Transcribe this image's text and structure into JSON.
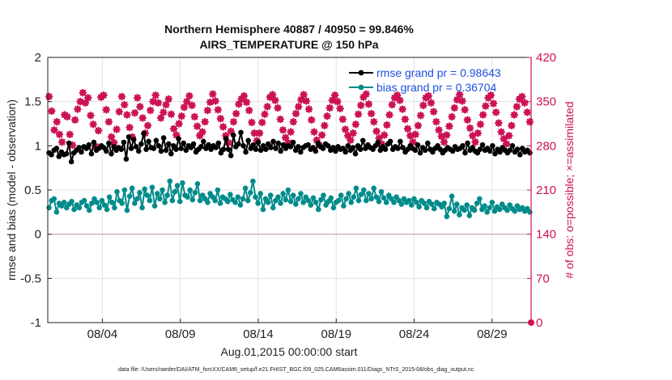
{
  "chart_data": {
    "type": "line",
    "title": "Northern Hemisphere 40887 / 40950 = 99.846%",
    "subtitle": "AIRS_TEMPERATURE @ 150 hPa",
    "xlabel": "Aug.01,2015 00:00:00 start",
    "ylabel": "rmse and bias (model - observation)",
    "ylabel_right": "# of obs: o=possible; ×=assimilated",
    "ylim": [
      -1,
      2
    ],
    "ylim_right": [
      0,
      420
    ],
    "xlim": [
      0.5,
      31.5
    ],
    "yticks": [
      "-1",
      "-0.5",
      "0",
      "0.5",
      "1",
      "1.5",
      "2"
    ],
    "yticks_right": [
      "0",
      "70",
      "140",
      "210",
      "280",
      "350",
      "420"
    ],
    "xticks": [
      {
        "day": 4,
        "label": "08/04"
      },
      {
        "day": 9,
        "label": "08/09"
      },
      {
        "day": 14,
        "label": "08/14"
      },
      {
        "day": 19,
        "label": "08/19"
      },
      {
        "day": 24,
        "label": "08/24"
      },
      {
        "day": 29,
        "label": "08/29"
      }
    ],
    "grid": true,
    "legend_position": "top-right",
    "footnote": "data file: /Users/raeder/DAI/ATM_forcXX/CAM6_setup/f.e21.FHIST_BGC.f09_025.CAM6assim.011/Diags_NTrS_2015-08/obs_diag_output.nc",
    "colors": {
      "rmse": "#000000",
      "bias": "#008b8b",
      "obs": "#cc1155",
      "zero_line": "#c9a3a8"
    },
    "series": [
      {
        "name": "rmse grand pr = 0.98643",
        "key": "rmse",
        "values": [
          0.92,
          0.9,
          0.95,
          0.97,
          0.88,
          0.93,
          0.9,
          0.91,
          1.03,
          0.82,
          0.92,
          0.95,
          0.98,
          0.93,
          0.99,
          0.97,
          1.01,
          0.91,
          1.04,
          0.95,
          0.97,
          1.0,
          0.98,
          0.94,
          1.03,
          0.91,
          0.99,
          0.95,
          0.98,
          0.96,
          1.04,
          0.85,
          1.1,
          0.97,
          1.07,
          0.99,
          0.94,
          1.02,
          1.14,
          0.96,
          1.05,
          0.98,
          0.97,
          1.06,
          1.0,
          0.94,
          1.09,
          0.95,
          1.02,
          0.91,
          1.0,
          0.96,
          1.08,
          0.97,
          1.03,
          0.95,
          1.0,
          0.98,
          1.02,
          0.93,
          0.96,
          0.99,
          1.05,
          0.97,
          1.01,
          0.96,
          1.0,
          0.98,
          1.03,
          0.92,
          0.96,
          1.08,
          0.96,
          0.89,
          1.12,
          0.99,
          1.02,
          1.15,
          1.0,
          0.93,
          1.06,
          0.97,
          1.01,
          0.96,
          1.04,
          0.95,
          1.0,
          0.96,
          1.02,
          0.98,
          1.05,
          0.97,
          1.03,
          0.94,
          1.01,
          0.97,
          1.0,
          0.99,
          1.04,
          0.95,
          0.99,
          0.93,
          0.98,
          1.0,
          1.01,
          0.96,
          0.98,
          0.94,
          1.03,
          0.99,
          0.97,
          1.02,
          1.0,
          0.95,
          0.98,
          0.94,
          0.99,
          0.96,
          0.97,
          0.93,
          1.0,
          0.95,
          0.98,
          0.91,
          1.0,
          0.96,
          1.06,
          0.97,
          1.01,
          0.98,
          0.96,
          1.0,
          1.04,
          0.95,
          0.99,
          0.96,
          1.02,
          1.05,
          0.96,
          0.99,
          0.97,
          1.05,
          0.98,
          0.93,
          0.96,
          1.0,
          0.97,
          0.95,
          1.01,
          0.92,
          0.98,
          0.95,
          1.03,
          0.96,
          0.93,
          0.97,
          1.0,
          0.96,
          0.92,
          0.95,
          0.98,
          0.96,
          0.94,
          0.99,
          0.96,
          0.97,
          1.0,
          0.92,
          1.03,
          0.95,
          0.98,
          0.94,
          0.92,
          0.96,
          1.01,
          0.95,
          0.97,
          0.94,
          1.0,
          0.91,
          0.96,
          0.93,
          0.98,
          0.95,
          0.92,
          0.95,
          1.0,
          0.93,
          0.96,
          0.9,
          0.97,
          0.93,
          0.95,
          0.92
        ]
      },
      {
        "name": "bias grand pr = 0.36704",
        "key": "bias",
        "values": [
          0.3,
          0.38,
          0.4,
          0.25,
          0.35,
          0.32,
          0.36,
          0.3,
          0.34,
          0.37,
          0.28,
          0.33,
          0.3,
          0.36,
          0.38,
          0.32,
          0.27,
          0.35,
          0.4,
          0.36,
          0.3,
          0.38,
          0.33,
          0.28,
          0.42,
          0.36,
          0.3,
          0.48,
          0.38,
          0.35,
          0.5,
          0.27,
          0.43,
          0.52,
          0.35,
          0.4,
          0.47,
          0.3,
          0.51,
          0.44,
          0.38,
          0.53,
          0.32,
          0.46,
          0.4,
          0.5,
          0.36,
          0.44,
          0.6,
          0.38,
          0.48,
          0.55,
          0.37,
          0.58,
          0.44,
          0.42,
          0.5,
          0.39,
          0.47,
          0.57,
          0.38,
          0.44,
          0.4,
          0.36,
          0.46,
          0.42,
          0.38,
          0.5,
          0.35,
          0.42,
          0.4,
          0.37,
          0.45,
          0.39,
          0.36,
          0.42,
          0.33,
          0.4,
          0.52,
          0.38,
          0.47,
          0.6,
          0.42,
          0.35,
          0.46,
          0.28,
          0.4,
          0.36,
          0.44,
          0.3,
          0.38,
          0.42,
          0.35,
          0.46,
          0.39,
          0.5,
          0.37,
          0.44,
          0.34,
          0.4,
          0.46,
          0.36,
          0.42,
          0.38,
          0.33,
          0.41,
          0.36,
          0.28,
          0.39,
          0.44,
          0.33,
          0.37,
          0.41,
          0.3,
          0.36,
          0.38,
          0.44,
          0.32,
          0.4,
          0.46,
          0.36,
          0.42,
          0.52,
          0.38,
          0.45,
          0.5,
          0.38,
          0.46,
          0.4,
          0.52,
          0.42,
          0.37,
          0.48,
          0.41,
          0.36,
          0.44,
          0.4,
          0.36,
          0.42,
          0.38,
          0.34,
          0.4,
          0.36,
          0.38,
          0.33,
          0.4,
          0.36,
          0.31,
          0.38,
          0.35,
          0.3,
          0.37,
          0.34,
          0.29,
          0.36,
          0.34,
          0.31,
          0.35,
          0.2,
          0.29,
          0.43,
          0.26,
          0.34,
          0.22,
          0.3,
          0.27,
          0.33,
          0.21,
          0.3,
          0.27,
          0.35,
          0.4,
          0.28,
          0.32,
          0.25,
          0.3,
          0.36,
          0.26,
          0.31,
          0.28,
          0.34,
          0.3,
          0.27,
          0.33,
          0.29,
          0.26,
          0.32,
          0.28,
          0.3,
          0.26,
          0.29,
          0.25
        ]
      },
      {
        "name": "obs",
        "key": "obs",
        "marker": "asterisk",
        "values": [
          358,
          335,
          305,
          318,
          298,
          286,
          329,
          326,
          298,
          281,
          321,
          338,
          350,
          364,
          348,
          356,
          328,
          314,
          279,
          304,
          357,
          360,
          337,
          318,
          294,
          285,
          306,
          334,
          358,
          345,
          329,
          309,
          294,
          332,
          356,
          342,
          324,
          300,
          312,
          336,
          350,
          360,
          348,
          324,
          333,
          345,
          354,
          330,
          307,
          297,
          315,
          327,
          341,
          350,
          359,
          344,
          326,
          311,
          296,
          302,
          318,
          336,
          349,
          362,
          351,
          337,
          323,
          310,
          296,
          285,
          303,
          318,
          331,
          346,
          354,
          359,
          349,
          336,
          317,
          300,
          288,
          300,
          317,
          330,
          342,
          357,
          361,
          352,
          340,
          322,
          305,
          293,
          285,
          302,
          318,
          331,
          342,
          353,
          361,
          351,
          338,
          321,
          302,
          289,
          281,
          297,
          312,
          327,
          340,
          352,
          360,
          350,
          339,
          322,
          306,
          296,
          289,
          300,
          314,
          330,
          344,
          357,
          362,
          346,
          331,
          318,
          303,
          292,
          283,
          297,
          313,
          329,
          345,
          356,
          360,
          352,
          338,
          322,
          307,
          296,
          286,
          298,
          312,
          328,
          344,
          356,
          359,
          348,
          334,
          318,
          305,
          295,
          286,
          297,
          311,
          326,
          340,
          353,
          361,
          351,
          337,
          321,
          308,
          296,
          286,
          300,
          314,
          329,
          343,
          356,
          360,
          347,
          333,
          316,
          302,
          291,
          283,
          296,
          312,
          329,
          342,
          354,
          358,
          348,
          333,
          318
        ]
      }
    ]
  }
}
